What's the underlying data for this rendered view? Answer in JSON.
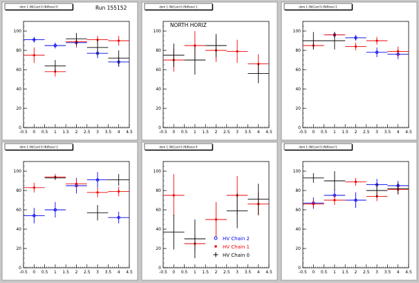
{
  "run_label": "Run 155152",
  "colors": {
    "chain2": "#0000ee",
    "chain1": "#ee0000",
    "chain0": "#000000"
  },
  "legend": [
    {
      "name": "HV Chain 2",
      "marker": "circle",
      "color": "#0000ee"
    },
    {
      "name": "HV Chain 1",
      "marker": "star",
      "color": "#ee0000"
    },
    {
      "name": "HV Chain 0",
      "marker": "cross",
      "color": "#000000"
    }
  ],
  "chart_data": [
    {
      "type": "scatter",
      "title": "",
      "pad_title": "dom 1 (N)Card 0 (N)Panel 0",
      "xlim": [
        -0.5,
        4.5
      ],
      "ylim": [
        0,
        110
      ],
      "x_ticks": [
        "-0.5",
        "0",
        "0.5",
        "1",
        "1.5",
        "2",
        "2.5",
        "3",
        "3.5",
        "4",
        "4.5"
      ],
      "y_ticks": [
        "0",
        "20",
        "40",
        "60",
        "80",
        "100"
      ],
      "series": [
        {
          "key": "chain2",
          "x": [
            0,
            1,
            2,
            3,
            4
          ],
          "y": [
            91,
            85,
            88,
            77,
            68
          ],
          "yerr": [
            3,
            3,
            5,
            5,
            5
          ]
        },
        {
          "key": "chain1",
          "x": [
            0,
            1,
            2,
            3,
            4
          ],
          "y": [
            75,
            58,
            89,
            91,
            90
          ],
          "yerr": [
            8,
            5,
            5,
            4,
            5
          ]
        },
        {
          "key": "chain0",
          "x": [
            0,
            1,
            2,
            3,
            4
          ],
          "y": [
            0,
            64,
            92,
            83,
            72
          ],
          "yerr": [
            0,
            6,
            6,
            8,
            8
          ]
        }
      ]
    },
    {
      "type": "scatter",
      "title": "NORTH HORIZ",
      "pad_title": "dom 1 (N)Card 0 (N)Panel 1",
      "xlim": [
        -0.5,
        4.5
      ],
      "ylim": [
        0,
        110
      ],
      "x_ticks": [
        "-0.5",
        "0",
        "0.5",
        "1",
        "1.5",
        "2",
        "2.5",
        "3",
        "3.5",
        "4",
        "4.5"
      ],
      "y_ticks": [
        "0",
        "20",
        "40",
        "60",
        "80",
        "100"
      ],
      "series": [
        {
          "key": "chain2",
          "x": [],
          "y": [],
          "yerr": []
        },
        {
          "key": "chain1",
          "x": [
            0,
            1,
            2,
            3,
            4
          ],
          "y": [
            70,
            85,
            80,
            79,
            66
          ],
          "yerr": [
            12,
            15,
            12,
            12,
            10
          ]
        },
        {
          "key": "chain0",
          "x": [
            0,
            1,
            2,
            3,
            4
          ],
          "y": [
            75,
            70,
            85,
            0,
            56
          ],
          "yerr": [
            12,
            15,
            12,
            0,
            10
          ]
        }
      ]
    },
    {
      "type": "scatter",
      "title": "",
      "pad_title": "dom 1 (N)Card 0 (N)Panel 2",
      "xlim": [
        -0.5,
        4.5
      ],
      "ylim": [
        0,
        110
      ],
      "x_ticks": [
        "-0.5",
        "0",
        "0.5",
        "1",
        "1.5",
        "2",
        "2.5",
        "3",
        "3.5",
        "4",
        "4.5"
      ],
      "y_ticks": [
        "0",
        "20",
        "40",
        "60",
        "80",
        "100"
      ],
      "series": [
        {
          "key": "chain2",
          "x": [
            0,
            1,
            2,
            3,
            4
          ],
          "y": [
            0,
            96,
            93,
            78,
            76
          ],
          "yerr": [
            0,
            3,
            3,
            5,
            5
          ]
        },
        {
          "key": "chain1",
          "x": [
            0,
            1,
            2,
            3,
            4
          ],
          "y": [
            85,
            96,
            84,
            90,
            79
          ],
          "yerr": [
            4,
            3,
            4,
            4,
            5
          ]
        },
        {
          "key": "chain0",
          "x": [
            0,
            1,
            2,
            3,
            4
          ],
          "y": [
            90,
            90,
            0,
            0,
            0
          ],
          "yerr": [
            9,
            9,
            0,
            0,
            0
          ]
        }
      ]
    },
    {
      "type": "scatter",
      "title": "",
      "pad_title": "dom 1 (N)Card 0 (N)Panel 3",
      "xlim": [
        -0.5,
        4.5
      ],
      "ylim": [
        0,
        110
      ],
      "x_ticks": [
        "-0.5",
        "0",
        "0.5",
        "1",
        "1.5",
        "2",
        "2.5",
        "3",
        "3.5",
        "4",
        "4.5"
      ],
      "y_ticks": [
        "0",
        "20",
        "40",
        "60",
        "80",
        "100"
      ],
      "series": [
        {
          "key": "chain2",
          "x": [
            0,
            1,
            2,
            3,
            4
          ],
          "y": [
            54,
            60,
            85,
            91,
            52
          ],
          "yerr": [
            8,
            8,
            8,
            8,
            6
          ]
        },
        {
          "key": "chain1",
          "x": [
            0,
            1,
            2,
            3,
            4
          ],
          "y": [
            83,
            94,
            87,
            78,
            79
          ],
          "yerr": [
            5,
            3,
            5,
            5,
            5
          ]
        },
        {
          "key": "chain0",
          "x": [
            0,
            1,
            2,
            3,
            4
          ],
          "y": [
            0,
            93,
            0,
            57,
            91
          ],
          "yerr": [
            0,
            2,
            0,
            8,
            6
          ]
        }
      ]
    },
    {
      "type": "scatter",
      "title": "",
      "pad_title": "dom 1 (N)Card 0 (N)Panel 4",
      "xlim": [
        -0.5,
        4.5
      ],
      "ylim": [
        0,
        110
      ],
      "x_ticks": [
        "-0.5",
        "0",
        "0.5",
        "1",
        "1.5",
        "2",
        "2.5",
        "3",
        "3.5",
        "4",
        "4.5"
      ],
      "y_ticks": [
        "0",
        "20",
        "40",
        "60",
        "80",
        "100"
      ],
      "series": [
        {
          "key": "chain2",
          "x": [],
          "y": [],
          "yerr": []
        },
        {
          "key": "chain1",
          "x": [
            0,
            1,
            2,
            3,
            4
          ],
          "y": [
            75,
            25,
            50,
            75,
            66
          ],
          "yerr": [
            22,
            8,
            18,
            20,
            12
          ]
        },
        {
          "key": "chain0",
          "x": [
            0,
            1,
            2,
            3,
            4
          ],
          "y": [
            37,
            30,
            0,
            59,
            71
          ],
          "yerr": [
            18,
            20,
            0,
            18,
            16
          ]
        }
      ]
    },
    {
      "type": "scatter",
      "title": "",
      "pad_title": "dom 1 (N)Card 0 (N)Panel 5",
      "xlim": [
        -0.5,
        4.5
      ],
      "ylim": [
        0,
        110
      ],
      "x_ticks": [
        "-0.5",
        "0",
        "0.5",
        "1",
        "1.5",
        "2",
        "2.5",
        "3",
        "3.5",
        "4",
        "4.5"
      ],
      "y_ticks": [
        "0",
        "20",
        "40",
        "60",
        "80",
        "100"
      ],
      "series": [
        {
          "key": "chain2",
          "x": [
            0,
            1,
            2,
            3,
            4
          ],
          "y": [
            67,
            75,
            70,
            86,
            85
          ],
          "yerr": [
            6,
            6,
            8,
            6,
            5
          ]
        },
        {
          "key": "chain1",
          "x": [
            0,
            1,
            2,
            3,
            4
          ],
          "y": [
            66,
            70,
            89,
            74,
            81
          ],
          "yerr": [
            4,
            5,
            4,
            5,
            5
          ]
        },
        {
          "key": "chain0",
          "x": [
            0,
            1,
            2,
            3,
            4
          ],
          "y": [
            93,
            90,
            0,
            80,
            82
          ],
          "yerr": [
            5,
            10,
            0,
            7,
            6
          ]
        }
      ]
    }
  ]
}
